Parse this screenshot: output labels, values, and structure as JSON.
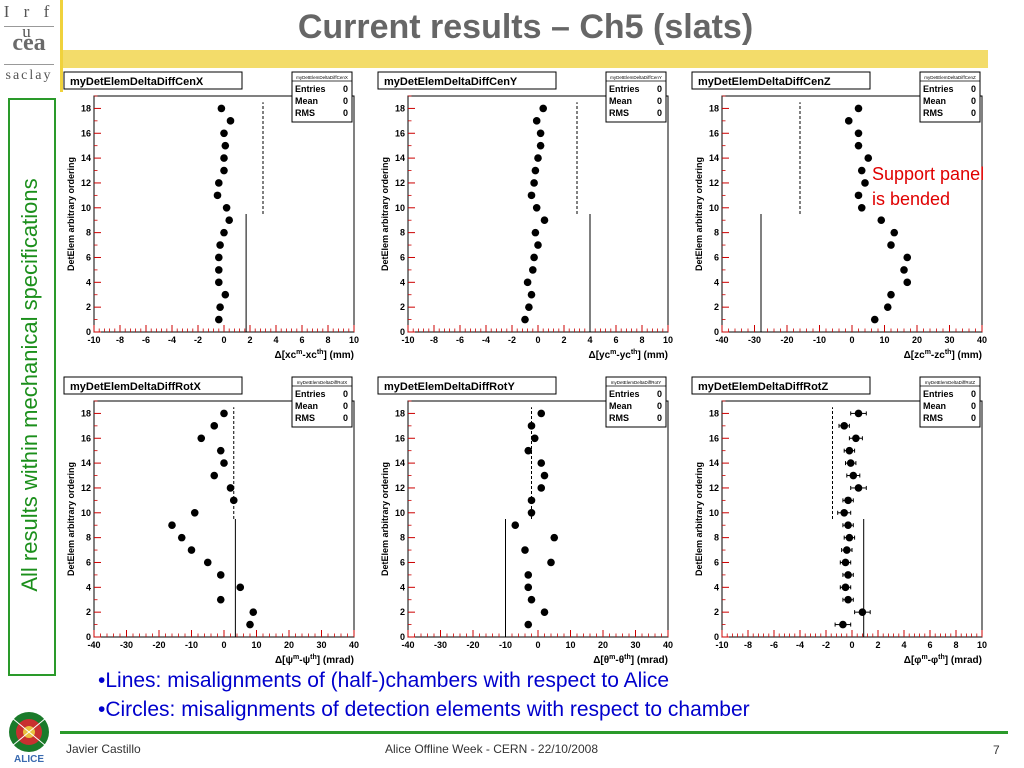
{
  "slide": {
    "title": "Current results – Ch5 (slats)",
    "side_label": "All results within mechanical specifications",
    "logos": {
      "top_lines": [
        "I r f u",
        "cea",
        "saclay"
      ],
      "bottom": "ALICE"
    },
    "bullets": [
      "•Lines: misalignments of (half-)chambers with respect to Alice",
      "•Circles: misalignments of detection elements with respect to chamber"
    ],
    "footer": {
      "author": "Javier Castillo",
      "event": "Alice Offline Week - CERN - 22/10/2008",
      "page": "7"
    },
    "annotation": [
      "Support panel",
      "is bended"
    ],
    "colors": {
      "title": "#666666",
      "accent_bar": "#f3dc6a",
      "side": "#1b8f1b",
      "bullet": "#0000cc",
      "annotation": "#e00000",
      "axis_ticks": "#cc0000"
    }
  },
  "chart_data": [
    {
      "type": "scatter",
      "title": "myDetElemDeltaDiffCenX",
      "xlabel": "Δ[xc^m_i-xc^th_i] (mm)",
      "xlabel_main": "Δ[xc",
      "xlabel_sup1": "m",
      "xlabel_mid": "-xc",
      "xlabel_sup2": "th",
      "xlabel_end": "] (mm)",
      "ylabel": "DetElem arbitrary ordering",
      "xlim": [
        -10,
        10
      ],
      "ylim": [
        0,
        19
      ],
      "xticks": [
        -10,
        -8,
        -6,
        -4,
        -2,
        0,
        2,
        4,
        6,
        8,
        10
      ],
      "yticks": [
        0,
        2,
        4,
        6,
        8,
        10,
        12,
        14,
        16,
        18
      ],
      "stats": {
        "labels": [
          "Entries",
          "Mean",
          "RMS"
        ],
        "values": [
          "0",
          "0",
          "0"
        ]
      },
      "points_x": [
        -0.4,
        -0.3,
        0.1,
        -0.4,
        -0.4,
        -0.4,
        -0.3,
        0.0,
        0.4,
        0.2,
        -0.5,
        -0.4,
        0.0,
        0.0,
        0.1,
        0.0,
        0.5,
        -0.2
      ],
      "points_y": [
        1,
        2,
        3,
        4,
        5,
        6,
        7,
        8,
        9,
        10,
        11,
        12,
        13,
        14,
        15,
        16,
        17,
        18
      ],
      "lines": [
        {
          "x": 1.7,
          "y0": 0,
          "y1": 9.5,
          "style": "solid"
        },
        {
          "x": 3.0,
          "y0": 9.5,
          "y1": 18.5,
          "style": "dashed"
        }
      ]
    },
    {
      "type": "scatter",
      "title": "myDetElemDeltaDiffCenY",
      "xlabel": "Δ[yc^m_i-yc^th_i] (mm)",
      "xlabel_main": "Δ[yc",
      "xlabel_sup1": "m",
      "xlabel_mid": "-yc",
      "xlabel_sup2": "th",
      "xlabel_end": "] (mm)",
      "ylabel": "DetElem arbitrary ordering",
      "xlim": [
        -10,
        10
      ],
      "ylim": [
        0,
        19
      ],
      "xticks": [
        -10,
        -8,
        -6,
        -4,
        -2,
        0,
        2,
        4,
        6,
        8,
        10
      ],
      "yticks": [
        0,
        2,
        4,
        6,
        8,
        10,
        12,
        14,
        16,
        18
      ],
      "stats": {
        "labels": [
          "Entries",
          "Mean",
          "RMS"
        ],
        "values": [
          "0",
          "0",
          "0"
        ]
      },
      "points_x": [
        -1.0,
        -0.7,
        -0.5,
        -0.8,
        -0.4,
        -0.3,
        0.0,
        -0.2,
        0.5,
        -0.1,
        -0.5,
        -0.3,
        -0.2,
        0.0,
        0.2,
        0.2,
        -0.1,
        0.4
      ],
      "points_y": [
        1,
        2,
        3,
        4,
        5,
        6,
        7,
        8,
        9,
        10,
        11,
        12,
        13,
        14,
        15,
        16,
        17,
        18
      ],
      "lines": [
        {
          "x": 4.0,
          "y0": 0,
          "y1": 9.5,
          "style": "solid"
        },
        {
          "x": 3.0,
          "y0": 9.5,
          "y1": 18.5,
          "style": "dashed"
        }
      ]
    },
    {
      "type": "scatter",
      "title": "myDetElemDeltaDiffCenZ",
      "xlabel": "Δ[zc^m_i-zc^th_i] (mm)",
      "xlabel_main": "Δ[zc",
      "xlabel_sup1": "m",
      "xlabel_mid": "-zc",
      "xlabel_sup2": "th",
      "xlabel_end": "] (mm)",
      "ylabel": "DetElem arbitrary ordering",
      "xlim": [
        -40,
        40
      ],
      "ylim": [
        0,
        19
      ],
      "xticks": [
        -40,
        -30,
        -20,
        -10,
        0,
        10,
        20,
        30,
        40
      ],
      "yticks": [
        0,
        2,
        4,
        6,
        8,
        10,
        12,
        14,
        16,
        18
      ],
      "stats": {
        "labels": [
          "Entries",
          "Mean",
          "RMS"
        ],
        "values": [
          "0",
          "0",
          "0"
        ]
      },
      "points_x": [
        7,
        11,
        12,
        17,
        16,
        17,
        12,
        13,
        9,
        3,
        2,
        4,
        3,
        5,
        2,
        2,
        -1,
        2
      ],
      "points_y": [
        1,
        2,
        3,
        4,
        5,
        6,
        7,
        8,
        9,
        10,
        11,
        12,
        13,
        14,
        15,
        16,
        17,
        18
      ],
      "lines": [
        {
          "x": -28,
          "y0": 0,
          "y1": 9.5,
          "style": "solid"
        },
        {
          "x": -16,
          "y0": 9.5,
          "y1": 18.5,
          "style": "dashed"
        }
      ]
    },
    {
      "type": "scatter",
      "title": "myDetElemDeltaDiffRotX",
      "xlabel": "Δ[ψ^m_i-ψ^th_i] (mrad)",
      "xlabel_main": "Δ[ψ",
      "xlabel_sup1": "m",
      "xlabel_mid": "-ψ",
      "xlabel_sup2": "th",
      "xlabel_end": "] (mrad)",
      "ylabel": "DetElem arbitrary ordering",
      "xlim": [
        -40,
        40
      ],
      "ylim": [
        0,
        19
      ],
      "xticks": [
        -40,
        -30,
        -20,
        -10,
        0,
        10,
        20,
        30,
        40
      ],
      "yticks": [
        0,
        2,
        4,
        6,
        8,
        10,
        12,
        14,
        16,
        18
      ],
      "stats": {
        "labels": [
          "Entries",
          "Mean",
          "RMS"
        ],
        "values": [
          "0",
          "0",
          "0"
        ]
      },
      "points_x": [
        8,
        9,
        -1,
        5,
        -1,
        -5,
        -10,
        -13,
        -16,
        -9,
        3,
        2,
        -3,
        0,
        -1,
        -7,
        -3,
        0
      ],
      "points_y": [
        1,
        2,
        3,
        4,
        5,
        6,
        7,
        8,
        9,
        10,
        11,
        12,
        13,
        14,
        15,
        16,
        17,
        18
      ],
      "lines": [
        {
          "x": 3.5,
          "y0": 0,
          "y1": 9.5,
          "style": "solid"
        },
        {
          "x": 3.0,
          "y0": 9.5,
          "y1": 18.5,
          "style": "dashed"
        }
      ]
    },
    {
      "type": "scatter",
      "title": "myDetElemDeltaDiffRotY",
      "xlabel": "Δ[θ^m_i-θ^th_i] (mrad)",
      "xlabel_main": "Δ[θ",
      "xlabel_sup1": "m",
      "xlabel_mid": "-θ",
      "xlabel_sup2": "th",
      "xlabel_end": "] (mrad)",
      "ylabel": "DetElem arbitrary ordering",
      "xlim": [
        -40,
        40
      ],
      "ylim": [
        0,
        19
      ],
      "xticks": [
        -40,
        -30,
        -20,
        -10,
        0,
        10,
        20,
        30,
        40
      ],
      "yticks": [
        0,
        2,
        4,
        6,
        8,
        10,
        12,
        14,
        16,
        18
      ],
      "stats": {
        "labels": [
          "Entries",
          "Mean",
          "RMS"
        ],
        "values": [
          "0",
          "0",
          "0"
        ]
      },
      "points_x": [
        -3,
        2,
        -2,
        -3,
        -3,
        4,
        -4,
        5,
        -7,
        -2,
        -2,
        1,
        2,
        1,
        -3,
        -1,
        -2,
        1
      ],
      "points_y": [
        1,
        2,
        3,
        4,
        5,
        6,
        7,
        8,
        9,
        10,
        11,
        12,
        13,
        14,
        15,
        16,
        17,
        18
      ],
      "lines": [
        {
          "x": -10,
          "y0": 0,
          "y1": 9.5,
          "style": "solid"
        },
        {
          "x": -2,
          "y0": 9.5,
          "y1": 18.5,
          "style": "dashed"
        }
      ]
    },
    {
      "type": "scatter",
      "title": "myDetElemDeltaDiffRotZ",
      "xlabel": "Δ[φ^m_i-φ^th_i] (mrad)",
      "xlabel_main": "Δ[φ",
      "xlabel_sup1": "m",
      "xlabel_mid": "-φ",
      "xlabel_sup2": "th",
      "xlabel_end": "] (mrad)",
      "ylabel": "DetElem arbitrary ordering",
      "xlim": [
        -10,
        10
      ],
      "ylim": [
        0,
        19
      ],
      "xticks": [
        -10,
        -8,
        -6,
        -4,
        -2,
        0,
        2,
        4,
        6,
        8,
        10
      ],
      "yticks": [
        0,
        2,
        4,
        6,
        8,
        10,
        12,
        14,
        16,
        18
      ],
      "stats": {
        "labels": [
          "Entries",
          "Mean",
          "RMS"
        ],
        "values": [
          "0",
          "0",
          "0"
        ]
      },
      "points_x": [
        -0.7,
        0.8,
        -0.3,
        -0.5,
        -0.3,
        -0.5,
        -0.4,
        -0.2,
        -0.3,
        -0.6,
        -0.3,
        0.5,
        0.1,
        -0.1,
        -0.2,
        0.3,
        -0.6,
        0.5
      ],
      "points_y": [
        1,
        2,
        3,
        4,
        5,
        6,
        7,
        8,
        9,
        10,
        11,
        12,
        13,
        14,
        15,
        16,
        17,
        18
      ],
      "points_xerr": [
        0.6,
        0.6,
        0.4,
        0.4,
        0.4,
        0.4,
        0.4,
        0.4,
        0.4,
        0.5,
        0.4,
        0.6,
        0.5,
        0.4,
        0.4,
        0.5,
        0.4,
        0.6
      ],
      "lines": [
        {
          "x": 0.9,
          "y0": 0,
          "y1": 9.5,
          "style": "solid"
        },
        {
          "x": -1.5,
          "y0": 9.5,
          "y1": 18.5,
          "style": "dashed"
        }
      ]
    }
  ]
}
